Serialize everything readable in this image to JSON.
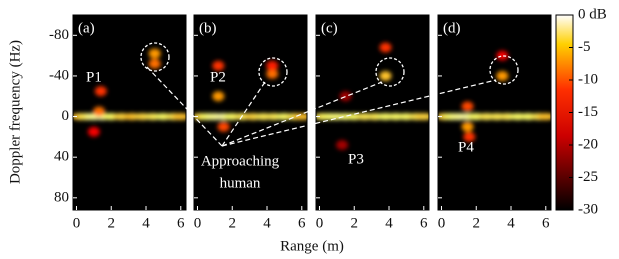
{
  "chart_data": {
    "type": "heatmap",
    "ylabel": "Doppler frequency (Hz)",
    "xlabel": "Range (m)",
    "xlim": [
      -0.2,
      6.3
    ],
    "xticks": [
      0,
      2,
      4,
      6
    ],
    "ylim": [
      -100,
      92
    ],
    "yticks": [
      -80,
      -40,
      0,
      40,
      80
    ],
    "clim": [
      -30,
      0
    ],
    "cticks": [
      {
        "value": 0,
        "label": "0 dB"
      },
      -5,
      -10,
      -15,
      -20,
      -25,
      -30
    ],
    "annotation": [
      "Approaching",
      "human"
    ],
    "panels": [
      {
        "label": "(a)",
        "marker": "P1",
        "x": [
          0.2,
          0.6,
          1.0,
          1.5,
          2.0,
          2.6,
          3.2,
          3.8,
          4.4,
          5.0,
          5.6,
          6.0,
          1.3,
          1.4,
          1.0,
          4.5,
          4.5
        ],
        "y": [
          0,
          0,
          0,
          0,
          0,
          0,
          0,
          0,
          0,
          0,
          0,
          0,
          -5,
          -25,
          15,
          -62,
          -52
        ],
        "values": [
          -8,
          -6,
          -3,
          -2,
          -5,
          -7,
          -8,
          -7,
          -6,
          -5,
          -6,
          -8,
          -12,
          -15,
          -18,
          -10,
          -12
        ]
      },
      {
        "label": "(b)",
        "marker": "P2",
        "x": [
          0.2,
          0.6,
          1.0,
          1.5,
          2.0,
          2.6,
          3.2,
          3.8,
          4.4,
          5.0,
          5.6,
          6.0,
          1.2,
          1.2,
          1.5,
          4.3,
          4.3
        ],
        "y": [
          0,
          0,
          0,
          0,
          0,
          0,
          0,
          0,
          0,
          0,
          0,
          0,
          -20,
          -50,
          10,
          -42,
          -50
        ],
        "values": [
          -7,
          -5,
          -3,
          -2,
          -5,
          -6,
          -7,
          -6,
          -6,
          -5,
          -6,
          -8,
          -10,
          -15,
          -14,
          -12,
          -16
        ]
      },
      {
        "label": "(c)",
        "marker": "P3",
        "x": [
          0.2,
          0.6,
          1.0,
          1.5,
          2.0,
          2.6,
          3.2,
          3.8,
          4.4,
          5.0,
          5.6,
          6.0,
          3.8,
          3.8,
          1.5,
          1.3
        ],
        "y": [
          0,
          0,
          0,
          0,
          0,
          0,
          0,
          0,
          0,
          0,
          0,
          0,
          -40,
          -68,
          -20,
          28
        ],
        "values": [
          -6,
          -5,
          -4,
          -4,
          -5,
          -6,
          -6,
          -5,
          -5,
          -5,
          -6,
          -7,
          -8,
          -15,
          -22,
          -22
        ]
      },
      {
        "label": "(d)",
        "marker": "P4",
        "x": [
          0.2,
          0.6,
          1.0,
          1.5,
          2.0,
          2.6,
          3.2,
          3.8,
          4.4,
          5.0,
          5.6,
          6.0,
          1.5,
          1.6,
          1.5,
          3.5,
          3.5
        ],
        "y": [
          0,
          0,
          0,
          0,
          0,
          0,
          0,
          0,
          0,
          0,
          0,
          0,
          10,
          20,
          -10,
          -40,
          -60
        ],
        "values": [
          -7,
          -5,
          -3,
          -2,
          -5,
          -6,
          -6,
          -6,
          -5,
          -5,
          -6,
          -8,
          -10,
          -15,
          -14,
          -10,
          -18
        ]
      }
    ]
  }
}
